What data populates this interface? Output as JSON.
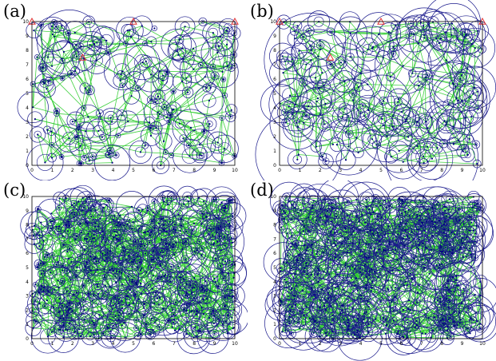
{
  "panels": [
    {
      "label": "(a)",
      "nodes": 180,
      "radius_scale": 1.0,
      "link_density": "low",
      "ticks": [
        "0",
        "1",
        "2",
        "3",
        "4",
        "5",
        "6",
        "7",
        "8",
        "9",
        "10"
      ],
      "triangles": 4
    },
    {
      "label": "(b)",
      "nodes": 180,
      "radius_scale": 1.6,
      "link_density": "low",
      "ticks": [
        "0",
        "1",
        "2",
        "3",
        "4",
        "5",
        "6",
        "7",
        "8",
        "9",
        "10"
      ],
      "triangles": 4
    },
    {
      "label": "(c)",
      "nodes": 520,
      "radius_scale": 1.0,
      "link_density": "high",
      "ticks": [
        "0",
        "1",
        "2",
        "3",
        "4",
        "5",
        "6",
        "7",
        "8",
        "9",
        "10"
      ],
      "triangles": 0
    },
    {
      "label": "(d)",
      "nodes": 520,
      "radius_scale": 1.4,
      "link_density": "high",
      "ticks": [
        "0",
        "1",
        "2",
        "3",
        "4",
        "5",
        "6",
        "7",
        "8",
        "9",
        "10"
      ],
      "triangles": 0
    }
  ],
  "colors": {
    "circle": "#1a1a8c",
    "link": "#2ecc2e",
    "node": "#000080",
    "triangle": "#e03030",
    "frame": "#000000"
  }
}
